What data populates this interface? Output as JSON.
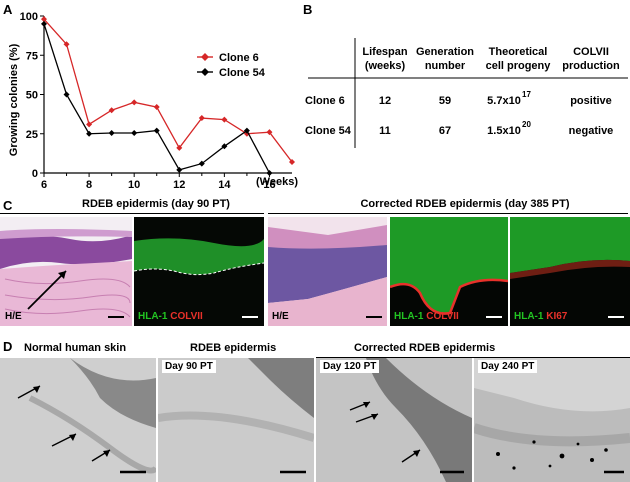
{
  "panels": {
    "a": "A",
    "b": "B",
    "c": "C",
    "d": "D"
  },
  "chart_data": {
    "type": "line",
    "ylabel": "Growing colonies (%)",
    "xunit": "(Weeks)",
    "xlim": [
      6,
      17
    ],
    "ylim": [
      0,
      100
    ],
    "xticks": [
      6,
      8,
      10,
      12,
      14,
      16
    ],
    "yticks": [
      0,
      25,
      50,
      75,
      100
    ],
    "legend_position": "top-right",
    "series": [
      {
        "name": "Clone 6",
        "color": "#d62728",
        "marker": "diamond",
        "x": [
          6,
          7,
          8,
          9,
          10,
          11,
          12,
          13,
          14,
          15,
          16,
          17
        ],
        "y": [
          98,
          82,
          31,
          40,
          45,
          42,
          16,
          35,
          34,
          25,
          26,
          7
        ]
      },
      {
        "name": "Clone 54",
        "color": "#000000",
        "marker": "diamond",
        "x": [
          6,
          7,
          8,
          9,
          10,
          11,
          12,
          13,
          14,
          15,
          16
        ],
        "y": [
          95,
          50,
          25,
          25.5,
          25.5,
          27,
          2,
          6,
          17,
          27,
          0
        ]
      }
    ]
  },
  "table": {
    "headers": [
      [
        "Lifespan",
        "(weeks)"
      ],
      [
        "Generation",
        "number"
      ],
      [
        "Theoretical",
        "cell progeny"
      ],
      [
        "COLVII",
        "production"
      ]
    ],
    "rows": [
      {
        "clone": "Clone 6",
        "lifespan": "12",
        "generation": "59",
        "progeny_base": "5.7x10",
        "progeny_exp": "17",
        "colvii": "positive"
      },
      {
        "clone": "Clone 54",
        "lifespan": "11",
        "generation": "67",
        "progeny_base": "1.5x10",
        "progeny_exp": "20",
        "colvii": "negative"
      }
    ]
  },
  "panel_c": {
    "left_title": "RDEB epidermis (day 90 PT)",
    "right_title": "Corrected RDEB epidermis (day 385 PT)",
    "he_label": "H/E",
    "hla": "HLA-1",
    "colvii": "COLVII",
    "ki67": "KI67",
    "colors": {
      "green": "#22c422",
      "red": "#e8312a"
    }
  },
  "panel_d": {
    "titles": [
      "Normal human skin",
      "RDEB epidermis",
      "Corrected RDEB epidermis"
    ],
    "labels": [
      "Day 90 PT",
      "Day 120 PT",
      "Day 240 PT"
    ]
  }
}
